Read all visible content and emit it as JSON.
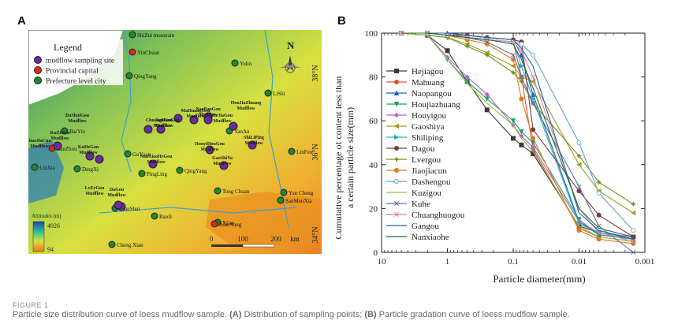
{
  "panel_a_letter": "A",
  "panel_b_letter": "B",
  "figure_label": "FIGURE 1",
  "caption": {
    "pre": "Particle size distribution curve of loess mudflow sample. ",
    "a_tag": "(A)",
    "a_text": " Distribution of sampling points; ",
    "b_tag": "(B)",
    "b_text": " Particle gradation curve of loess mudflow sample."
  },
  "map": {
    "legend_title": "Legend",
    "legend_items": [
      {
        "label": "mudflow sampling site",
        "color": "#6a2aa0"
      },
      {
        "label": "Provincial capital",
        "color": "#e0281e"
      },
      {
        "label": "Prefecture level city",
        "color": "#1e8a2e"
      }
    ],
    "top_lon_labels": [
      "105°E",
      "110°E"
    ],
    "bottom_lon_labels": [
      "105°E",
      "110°E"
    ],
    "left_lat_labels": [
      "38°N",
      "36°N",
      "34°N"
    ],
    "right_lat_labels": [
      "38°N",
      "36°N",
      "34°N"
    ],
    "north_label": "N",
    "altitude_title": "Altitudes (m)",
    "altitude_max": "4926",
    "altitude_min": "94",
    "scale_labels": [
      "0",
      "100",
      "200",
      "km"
    ],
    "cities": [
      {
        "name": "ShiZui mountain",
        "type": "city"
      },
      {
        "name": "YinChuan",
        "type": "capital"
      },
      {
        "name": "QingYang",
        "type": "city"
      },
      {
        "name": "Yulin",
        "type": "city"
      },
      {
        "name": "LiShi",
        "type": "city"
      },
      {
        "name": "YanAn",
        "type": "city"
      },
      {
        "name": "BaiYin",
        "type": "city"
      },
      {
        "name": "LanZhou",
        "type": "capital"
      },
      {
        "name": "LinXia",
        "type": "city"
      },
      {
        "name": "DingXi",
        "type": "city"
      },
      {
        "name": "GuYuan",
        "type": "city"
      },
      {
        "name": "PingLing",
        "type": "city"
      },
      {
        "name": "QingYang",
        "type": "city"
      },
      {
        "name": "LinFen",
        "type": "city"
      },
      {
        "name": "Tong Chuan",
        "type": "city"
      },
      {
        "name": "Yun Cheng",
        "type": "city"
      },
      {
        "name": "SanMenXia",
        "type": "city"
      },
      {
        "name": "TianShui",
        "type": "city"
      },
      {
        "name": "BaoJi",
        "type": "city"
      },
      {
        "name": "Xi'an",
        "type": "city"
      },
      {
        "name": "XianYang",
        "type": "capital"
      },
      {
        "name": "Cheng Xian",
        "type": "city"
      }
    ],
    "mudflow_labels": [
      "DaShuiGou Mudflow",
      "KuZiGou Mudflow",
      "JiaoJiaCun Mudflow",
      "KuHeGou Mudflow",
      "GanGou Mudflow",
      "MaHuangGou Mudflow",
      "ChuangHuoGou Mudflow",
      "NaoPanGou Mudflow",
      "HeJiaGou Mudflow",
      "HouJiaZhuang Mudflow",
      "NanXiaoHeGou Mudflow",
      "HouyiHouGou Mudflow",
      "ShiLiPing Mudflow",
      "GaoShiYa Mudflow",
      "LvErGou Mudflow",
      "DaGou Mudflow"
    ]
  },
  "chart_data": {
    "type": "line",
    "xlabel": "Particle diameter(mm)",
    "ylabel": "Cumulative percentage of content less than a certain particle size(mm)",
    "xscale": "log",
    "xaxis_reversed": true,
    "xlim": [
      10,
      0.001
    ],
    "ylim": [
      0,
      100
    ],
    "xticks": [
      10,
      1,
      0.1,
      0.01,
      0.001
    ],
    "xtick_labels": [
      "10",
      "1",
      "0.1",
      "0.01",
      "0.001"
    ],
    "yticks": [
      0,
      20,
      40,
      60,
      80,
      100
    ],
    "legend_position": "left",
    "series": [
      {
        "name": "Hejiagou",
        "color": "#3a3a3a",
        "marker": "square",
        "x": [
          5,
          2,
          1,
          0.5,
          0.25,
          0.1,
          0.075,
          0.05,
          0.01,
          0.005,
          0.0015
        ],
        "y": [
          100,
          99,
          92,
          78,
          65,
          52,
          49,
          45,
          12,
          9,
          7
        ]
      },
      {
        "name": "Mahuang",
        "color": "#e05030",
        "marker": "circle",
        "x": [
          5,
          2,
          1,
          0.5,
          0.25,
          0.1,
          0.075,
          0.05,
          0.01,
          0.005,
          0.0015
        ],
        "y": [
          100,
          100,
          99,
          98,
          97,
          96,
          80,
          47,
          11,
          7,
          5
        ]
      },
      {
        "name": "Naopangou",
        "color": "#2060c0",
        "marker": "triangle",
        "x": [
          5,
          2,
          1,
          0.5,
          0.25,
          0.1,
          0.075,
          0.05,
          0.01,
          0.005,
          0.0015
        ],
        "y": [
          100,
          100,
          100,
          99,
          98,
          97,
          90,
          72,
          14,
          8,
          6
        ]
      },
      {
        "name": "Houjiazhuang",
        "color": "#20a060",
        "marker": "triangle-down",
        "x": [
          5,
          2,
          1,
          0.5,
          0.25,
          0.1,
          0.075,
          0.05,
          0.01,
          0.005,
          0.0015
        ],
        "y": [
          100,
          99,
          88,
          78,
          70,
          60,
          55,
          50,
          15,
          8,
          6
        ]
      },
      {
        "name": "Houyigou",
        "color": "#c060d0",
        "marker": "diamond",
        "x": [
          5,
          2,
          1,
          0.5,
          0.25,
          0.1,
          0.075,
          0.05,
          0.01,
          0.005,
          0.0015
        ],
        "y": [
          100,
          99,
          89,
          80,
          72,
          58,
          53,
          48,
          14,
          9,
          7
        ]
      },
      {
        "name": "Gaoshiya",
        "color": "#a0a020",
        "marker": "triangle-left",
        "x": [
          5,
          2,
          1,
          0.5,
          0.25,
          0.1,
          0.075,
          0.05,
          0.01,
          0.005,
          0.0015
        ],
        "y": [
          100,
          99,
          98,
          95,
          91,
          85,
          80,
          78,
          40,
          28,
          18
        ]
      },
      {
        "name": "Shiliping",
        "color": "#20b0c0",
        "marker": "triangle-right",
        "x": [
          5,
          2,
          1,
          0.5,
          0.25,
          0.1,
          0.075,
          0.05,
          0.01,
          0.005,
          0.0015
        ],
        "y": [
          100,
          100,
          99,
          98,
          97,
          96,
          85,
          70,
          13,
          9,
          6
        ]
      },
      {
        "name": "Dagou",
        "color": "#7a3a3a",
        "marker": "circle",
        "x": [
          5,
          2,
          1,
          0.5,
          0.25,
          0.1,
          0.075,
          0.05,
          0.01,
          0.005,
          0.0015
        ],
        "y": [
          100,
          100,
          99,
          99,
          98,
          97,
          96,
          56,
          28,
          17,
          7
        ]
      },
      {
        "name": "Lvergou",
        "color": "#709020",
        "marker": "star",
        "x": [
          5,
          2,
          1,
          0.5,
          0.25,
          0.1,
          0.075,
          0.05,
          0.01,
          0.005,
          0.0015
        ],
        "y": [
          100,
          99,
          98,
          94,
          90,
          82,
          78,
          68,
          44,
          32,
          22
        ]
      },
      {
        "name": "Jiaojiacun",
        "color": "#e07820",
        "marker": "circle",
        "x": [
          5,
          2,
          1,
          0.5,
          0.25,
          0.1,
          0.075,
          0.05,
          0.01,
          0.005,
          0.0015
        ],
        "y": [
          100,
          100,
          99,
          97,
          95,
          88,
          70,
          52,
          10,
          6,
          4
        ]
      },
      {
        "name": "Dashengou",
        "color": "#60a0d0",
        "marker": "circle-open",
        "x": [
          5,
          2,
          1,
          0.5,
          0.25,
          0.1,
          0.075,
          0.05,
          0.01,
          0.005,
          0.0015
        ],
        "y": [
          100,
          100,
          99,
          98,
          97,
          96,
          95,
          90,
          50,
          27,
          10
        ]
      },
      {
        "name": "Kuzigou",
        "color": "#90c040",
        "marker": "none",
        "x": [
          5,
          2,
          1,
          0.5,
          0.25,
          0.1,
          0.075,
          0.05,
          0.01,
          0.005,
          0.0015
        ],
        "y": [
          100,
          99,
          88,
          77,
          68,
          58,
          52,
          46,
          12,
          7,
          5
        ]
      },
      {
        "name": "Kuhe",
        "color": "#6070a0",
        "marker": "x",
        "x": [
          5,
          2,
          1,
          0.5,
          0.25,
          0.1,
          0.075,
          0.05,
          0.01,
          0.005,
          0.0015
        ],
        "y": [
          100,
          100,
          99,
          98,
          96,
          90,
          80,
          68,
          30,
          12,
          0
        ]
      },
      {
        "name": "Chuanghuogou",
        "color": "#e080a0",
        "marker": "x",
        "x": [
          5,
          2,
          1,
          0.5,
          0.25,
          0.1,
          0.075,
          0.05,
          0.01,
          0.005,
          0.0015
        ],
        "y": [
          100,
          100,
          99,
          98,
          97,
          96,
          92,
          80,
          20,
          9,
          5
        ]
      },
      {
        "name": "Gangou",
        "color": "#2060b0",
        "marker": "none",
        "x": [
          5,
          2,
          1,
          0.5,
          0.25,
          0.1,
          0.075,
          0.05,
          0.01,
          0.005,
          0.0015
        ],
        "y": [
          100,
          100,
          100,
          99,
          98,
          97,
          93,
          85,
          18,
          10,
          6
        ]
      },
      {
        "name": "Nanxiaohe",
        "color": "#207030",
        "marker": "none",
        "x": [
          5,
          2,
          1,
          0.5,
          0.25,
          0.1,
          0.075,
          0.05,
          0.01,
          0.005,
          0.0015
        ],
        "y": [
          100,
          100,
          99,
          98,
          97,
          95,
          88,
          75,
          20,
          11,
          7
        ]
      }
    ]
  }
}
